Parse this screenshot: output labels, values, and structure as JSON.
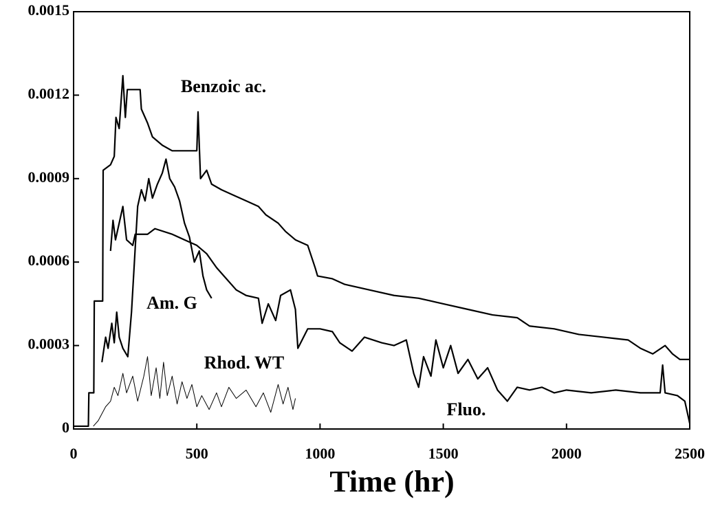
{
  "chart_data": {
    "type": "line",
    "x_label": "Time (hr)",
    "xlim": [
      0,
      2500
    ],
    "xticks": [
      0,
      500,
      1000,
      1500,
      2000,
      2500
    ],
    "ylim": [
      0,
      0.0015
    ],
    "yticks": [
      0,
      0.0003,
      0.0006,
      0.0009,
      0.0012,
      0.0015
    ],
    "grid": false,
    "series": [
      {
        "name": "Benzoic ac.",
        "color": "#000000",
        "line_width": 2.2,
        "x": [
          0,
          60,
          62,
          82,
          84,
          118,
          120,
          150,
          165,
          172,
          185,
          200,
          210,
          218,
          270,
          275,
          300,
          320,
          360,
          400,
          500,
          505,
          515,
          540,
          560,
          600,
          650,
          700,
          750,
          780,
          830,
          860,
          900,
          950,
          980,
          990,
          1050,
          1100,
          1200,
          1300,
          1400,
          1450,
          1500,
          1600,
          1700,
          1800,
          1850,
          1950,
          2050,
          2150,
          2250,
          2300,
          2350,
          2400,
          2430,
          2460,
          2500
        ],
        "values": [
          1e-05,
          1e-05,
          0.00013,
          0.00013,
          0.00046,
          0.00046,
          0.00093,
          0.00095,
          0.00098,
          0.00112,
          0.00108,
          0.00127,
          0.00112,
          0.00122,
          0.00122,
          0.00115,
          0.0011,
          0.00105,
          0.00102,
          0.001,
          0.001,
          0.00114,
          0.0009,
          0.00093,
          0.00088,
          0.00086,
          0.00084,
          0.00082,
          0.0008,
          0.00077,
          0.00074,
          0.00071,
          0.00068,
          0.00066,
          0.00058,
          0.00055,
          0.00054,
          0.00052,
          0.0005,
          0.00048,
          0.00047,
          0.00046,
          0.00045,
          0.00043,
          0.00041,
          0.0004,
          0.00037,
          0.00036,
          0.00034,
          0.00033,
          0.00032,
          0.00029,
          0.00027,
          0.0003,
          0.00027,
          0.00025,
          0.00025
        ]
      },
      {
        "name": "Am. G",
        "color": "#000000",
        "line_width": 2.2,
        "x": [
          115,
          130,
          140,
          155,
          165,
          175,
          185,
          200,
          220,
          235,
          250,
          260,
          275,
          290,
          305,
          320,
          340,
          360,
          375,
          390,
          410,
          430,
          450,
          470,
          490,
          510,
          525,
          540,
          560
        ],
        "values": [
          0.00024,
          0.00033,
          0.00029,
          0.00038,
          0.00031,
          0.00042,
          0.00033,
          0.00029,
          0.00026,
          0.00042,
          0.00065,
          0.0008,
          0.00086,
          0.00082,
          0.0009,
          0.00083,
          0.00088,
          0.00092,
          0.00097,
          0.0009,
          0.00087,
          0.00082,
          0.00074,
          0.00069,
          0.0006,
          0.00064,
          0.00055,
          0.0005,
          0.00047
        ]
      },
      {
        "name": "Rhod. WT",
        "color": "#000000",
        "line_width": 1,
        "x": [
          80,
          100,
          130,
          150,
          165,
          180,
          200,
          215,
          240,
          260,
          285,
          300,
          315,
          335,
          350,
          365,
          380,
          400,
          420,
          440,
          460,
          480,
          500,
          520,
          550,
          580,
          600,
          630,
          660,
          700,
          740,
          770,
          800,
          830,
          850,
          870,
          890,
          900
        ],
        "values": [
          1e-05,
          3e-05,
          8e-05,
          0.0001,
          0.00015,
          0.00012,
          0.0002,
          0.00013,
          0.00019,
          0.0001,
          0.00019,
          0.00026,
          0.00012,
          0.00022,
          0.00011,
          0.00024,
          0.00012,
          0.00019,
          9e-05,
          0.00017,
          0.00011,
          0.00016,
          8e-05,
          0.00012,
          7e-05,
          0.00013,
          8e-05,
          0.00015,
          0.00011,
          0.00014,
          8e-05,
          0.00013,
          6e-05,
          0.00016,
          9e-05,
          0.00015,
          7e-05,
          0.00011
        ]
      },
      {
        "name": "Fluo.",
        "color": "#000000",
        "line_width": 2.2,
        "x": [
          150,
          160,
          170,
          200,
          215,
          240,
          250,
          300,
          330,
          400,
          450,
          500,
          540,
          580,
          620,
          660,
          700,
          750,
          765,
          790,
          820,
          840,
          880,
          900,
          910,
          950,
          1000,
          1050,
          1080,
          1130,
          1180,
          1250,
          1300,
          1350,
          1380,
          1400,
          1420,
          1450,
          1470,
          1500,
          1530,
          1560,
          1600,
          1640,
          1680,
          1720,
          1760,
          1800,
          1850,
          1900,
          1950,
          2000,
          2100,
          2200,
          2300,
          2380,
          2390,
          2400,
          2450,
          2480,
          2500
        ],
        "values": [
          0.00064,
          0.00075,
          0.00068,
          0.0008,
          0.00068,
          0.00066,
          0.0007,
          0.0007,
          0.00072,
          0.0007,
          0.00068,
          0.00066,
          0.00063,
          0.00058,
          0.00054,
          0.0005,
          0.00048,
          0.00047,
          0.00038,
          0.00045,
          0.00039,
          0.00048,
          0.0005,
          0.00043,
          0.00029,
          0.00036,
          0.00036,
          0.00035,
          0.00031,
          0.00028,
          0.00033,
          0.00031,
          0.0003,
          0.00032,
          0.0002,
          0.00015,
          0.00026,
          0.00019,
          0.00032,
          0.00022,
          0.0003,
          0.0002,
          0.00025,
          0.00018,
          0.00022,
          0.00014,
          0.0001,
          0.00015,
          0.00014,
          0.00015,
          0.00013,
          0.00014,
          0.00013,
          0.00014,
          0.00013,
          0.00013,
          0.00023,
          0.00013,
          0.00012,
          0.0001,
          2e-05
        ]
      }
    ]
  }
}
